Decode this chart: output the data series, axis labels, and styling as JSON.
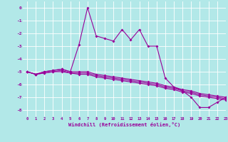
{
  "xlabel": "Windchill (Refroidissement éolien,°C)",
  "background_color": "#b2e8e8",
  "grid_color": "#ffffff",
  "line_color": "#990099",
  "xlim": [
    -0.5,
    23
  ],
  "ylim": [
    -8.5,
    0.5
  ],
  "yticks": [
    0,
    -1,
    -2,
    -3,
    -4,
    -5,
    -6,
    -7,
    -8
  ],
  "xticks": [
    0,
    1,
    2,
    3,
    4,
    5,
    6,
    7,
    8,
    9,
    10,
    11,
    12,
    13,
    14,
    15,
    16,
    17,
    18,
    19,
    20,
    21,
    22,
    23
  ],
  "main_x": [
    0,
    1,
    2,
    3,
    4,
    5,
    6,
    7,
    8,
    9,
    10,
    11,
    12,
    13,
    14,
    15,
    16,
    17,
    18,
    19,
    20,
    21,
    22,
    23
  ],
  "main_y": [
    -5.0,
    -5.2,
    -5.0,
    -4.9,
    -4.8,
    -5.0,
    -2.9,
    0.0,
    -2.2,
    -2.4,
    -2.6,
    -1.7,
    -2.5,
    -1.7,
    -3.0,
    -3.0,
    -5.5,
    -6.2,
    -6.5,
    -7.0,
    -7.8,
    -7.8,
    -7.4,
    -7.0
  ],
  "line2_x": [
    0,
    1,
    2,
    3,
    4,
    5,
    6,
    7,
    8,
    9,
    10,
    11,
    12,
    13,
    14,
    15,
    16,
    17,
    18,
    19,
    20,
    21,
    22,
    23
  ],
  "line2_y": [
    -5.0,
    -5.2,
    -5.0,
    -4.9,
    -4.8,
    -5.0,
    -5.0,
    -5.0,
    -5.2,
    -5.3,
    -5.4,
    -5.5,
    -5.6,
    -5.7,
    -5.8,
    -5.9,
    -6.1,
    -6.2,
    -6.4,
    -6.5,
    -6.7,
    -6.8,
    -6.9,
    -7.0
  ],
  "line3_x": [
    0,
    1,
    2,
    3,
    4,
    5,
    6,
    7,
    8,
    9,
    10,
    11,
    12,
    13,
    14,
    15,
    16,
    17,
    18,
    19,
    20,
    21,
    22,
    23
  ],
  "line3_y": [
    -5.0,
    -5.2,
    -5.1,
    -5.0,
    -4.9,
    -5.1,
    -5.1,
    -5.1,
    -5.3,
    -5.4,
    -5.5,
    -5.6,
    -5.7,
    -5.8,
    -5.9,
    -6.0,
    -6.2,
    -6.3,
    -6.5,
    -6.6,
    -6.8,
    -6.9,
    -7.0,
    -7.1
  ],
  "line4_x": [
    0,
    1,
    2,
    3,
    4,
    5,
    6,
    7,
    8,
    9,
    10,
    11,
    12,
    13,
    14,
    15,
    16,
    17,
    18,
    19,
    20,
    21,
    22,
    23
  ],
  "line4_y": [
    -5.0,
    -5.2,
    -5.1,
    -5.0,
    -5.0,
    -5.1,
    -5.2,
    -5.2,
    -5.4,
    -5.5,
    -5.6,
    -5.7,
    -5.8,
    -5.9,
    -6.0,
    -6.1,
    -6.3,
    -6.4,
    -6.6,
    -6.7,
    -6.9,
    -7.0,
    -7.1,
    -7.2
  ]
}
